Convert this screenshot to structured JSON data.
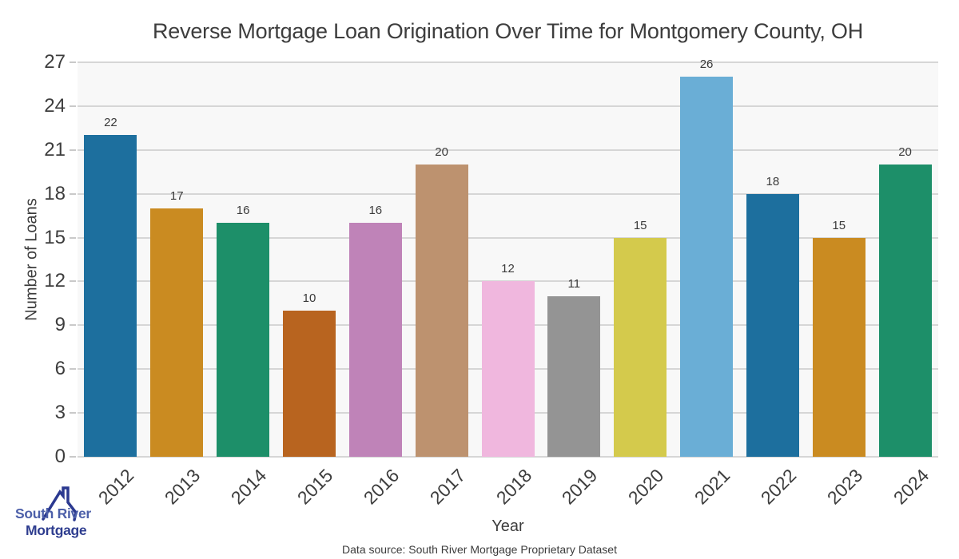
{
  "chart_data": {
    "type": "bar",
    "title": "Reverse Mortgage Loan Origination Over Time for Montgomery County, OH",
    "xlabel": "Year",
    "ylabel": "Number of Loans",
    "categories": [
      "2012",
      "2013",
      "2014",
      "2015",
      "2016",
      "2017",
      "2018",
      "2019",
      "2020",
      "2021",
      "2022",
      "2023",
      "2024"
    ],
    "values": [
      22,
      17,
      16,
      10,
      16,
      20,
      12,
      11,
      15,
      26,
      18,
      15,
      20
    ],
    "bar_colors": [
      "#1d6f9e",
      "#ca8b21",
      "#1d8f69",
      "#b8641f",
      "#bf83b8",
      "#bd926f",
      "#f0b7de",
      "#949494",
      "#d4ca4c",
      "#6aaed6",
      "#1d6f9e",
      "#ca8b21",
      "#1d8f69"
    ],
    "yticks": [
      0,
      3,
      6,
      9,
      12,
      15,
      18,
      21,
      24,
      27
    ],
    "ylim": [
      0,
      27
    ],
    "grid": true,
    "legend": false
  },
  "colors": {
    "plot_bg": "#f8f8f8",
    "grid": "#d6d6d6",
    "axis_text": "#3d3d3d",
    "value_label_text": "#3a3a3a"
  },
  "logo": {
    "line1": "South River",
    "line2": "Mortgage",
    "line1_color": "#4c5fa9",
    "line2_color": "#2e3d8f",
    "roof_color": "#2b3990"
  },
  "footer": {
    "source": "Data source: South River Mortgage Proprietary Dataset"
  }
}
